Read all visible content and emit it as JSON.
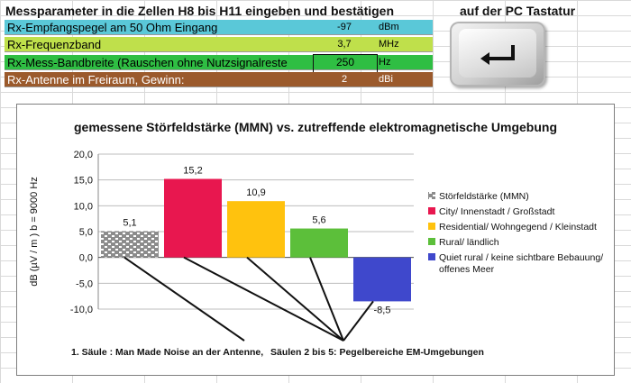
{
  "sheet": {
    "header_left": "Messparameter in die Zellen H8 bis H11 eingeben und bestätigen",
    "header_right": "auf der PC Tastatur",
    "rows": [
      {
        "label": "Rx-Empfangspegel am 50 Ohm Eingang",
        "value": "-97",
        "unit": "dBm",
        "color": "#5ac8d8"
      },
      {
        "label": "Rx-Frequenzband",
        "value": "3,7",
        "unit": "MHz",
        "color": "#bfe04b"
      },
      {
        "label": "Rx-Mess-Bandbreite (Rauschen ohne Nutzsignalreste",
        "value": "250",
        "unit": "Hz",
        "color": "#2fbe43"
      },
      {
        "label": "Rx-Antenne im Freiraum,  Gewinn:",
        "value": "2",
        "unit": "dBi",
        "color": "#9b5a2c"
      }
    ],
    "enter_key_icon": "enter-key-icon"
  },
  "chart_data": {
    "type": "bar",
    "title": "gemessene Störfeldstärke (MMN) vs. zutreffende elektromagnetische Umgebung",
    "ylabel": "dB (µV / m )   b = 9000 Hz",
    "xlabel": "",
    "ylim": [
      -10,
      20
    ],
    "yticks": [
      "20,0",
      "15,0",
      "10,0",
      "5,0",
      "0,0",
      "-5,0",
      "-10,0"
    ],
    "series": [
      {
        "name": "Störfeldstärke (MMN)",
        "value": 5.1,
        "label": "5,1",
        "color": "#8c8c8c",
        "pattern": true
      },
      {
        "name": "City/  Innenstadt / Großstadt",
        "value": 15.2,
        "label": "15,2",
        "color": "#e8174f"
      },
      {
        "name": "Residential/ Wohngegend / Kleinstadt",
        "value": 10.9,
        "label": "10,9",
        "color": "#ffc20e"
      },
      {
        "name": "Rural/ ländlich",
        "value": 5.6,
        "label": "5,6",
        "color": "#5cbf3a"
      },
      {
        "name": "Quiet rural / keine sichtbare Bebauung/ offenes Meer",
        "value": -8.5,
        "label": "-8,5",
        "color": "#3f48cc"
      }
    ],
    "legend_position": "right",
    "grid": true,
    "annotation_left": "1. Säule : Man Made Noise  an der Antenne,",
    "annotation_right": "Säulen 2 bis 5:  Pegelbereiche EM-Umgebungen"
  }
}
